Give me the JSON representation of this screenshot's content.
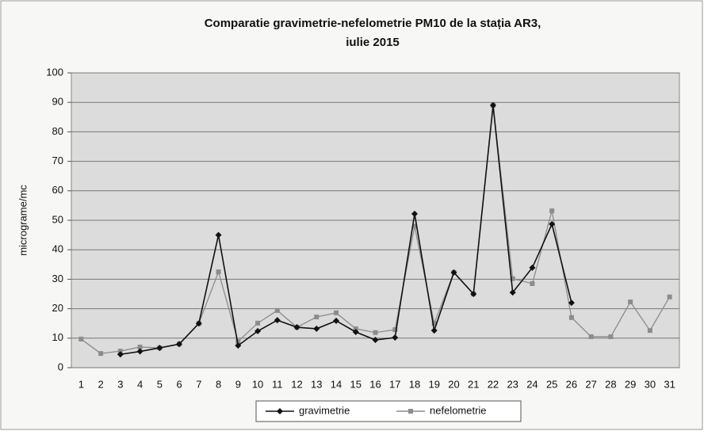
{
  "chart_data": {
    "type": "line",
    "title": [
      "Comparatie gravimetrie-nefelometrie PM10 de la stația AR3,",
      "iulie 2015"
    ],
    "y_label": "micrograme/mc",
    "categories": [
      "1",
      "2",
      "3",
      "4",
      "5",
      "6",
      "7",
      "8",
      "9",
      "10",
      "11",
      "12",
      "13",
      "14",
      "15",
      "16",
      "17",
      "18",
      "19",
      "20",
      "21",
      "22",
      "23",
      "24",
      "25",
      "26",
      "27",
      "28",
      "29",
      "30",
      "31"
    ],
    "series": [
      {
        "name": "gravimetrie",
        "color": "#111111",
        "marker": "diamond",
        "values": [
          null,
          null,
          4.5,
          5.5,
          6.7,
          8,
          15,
          45,
          7.5,
          12.4,
          16.1,
          13.7,
          13.2,
          15.9,
          12.1,
          9.4,
          10.2,
          52.2,
          12.6,
          32.3,
          25,
          89,
          25.5,
          33.9,
          48.7,
          22,
          null,
          null,
          null,
          null,
          null
        ]
      },
      {
        "name": "nefelometrie",
        "color": "#8c8c8c",
        "marker": "square",
        "values": [
          9.7,
          4.8,
          5.6,
          7,
          6.7,
          8,
          15,
          32.5,
          8.9,
          15.1,
          19.4,
          13.7,
          17.2,
          18.6,
          13.2,
          11.9,
          12.9,
          48,
          15,
          32.3,
          25,
          89,
          30.2,
          28.5,
          53.2,
          17,
          10.5,
          10.5,
          22.3,
          12.6,
          24
        ]
      }
    ],
    "ylim": [
      0,
      100
    ],
    "yticks": [
      0,
      10,
      20,
      30,
      40,
      50,
      60,
      70,
      80,
      90,
      100
    ],
    "grid": true,
    "legend": "bottom"
  }
}
